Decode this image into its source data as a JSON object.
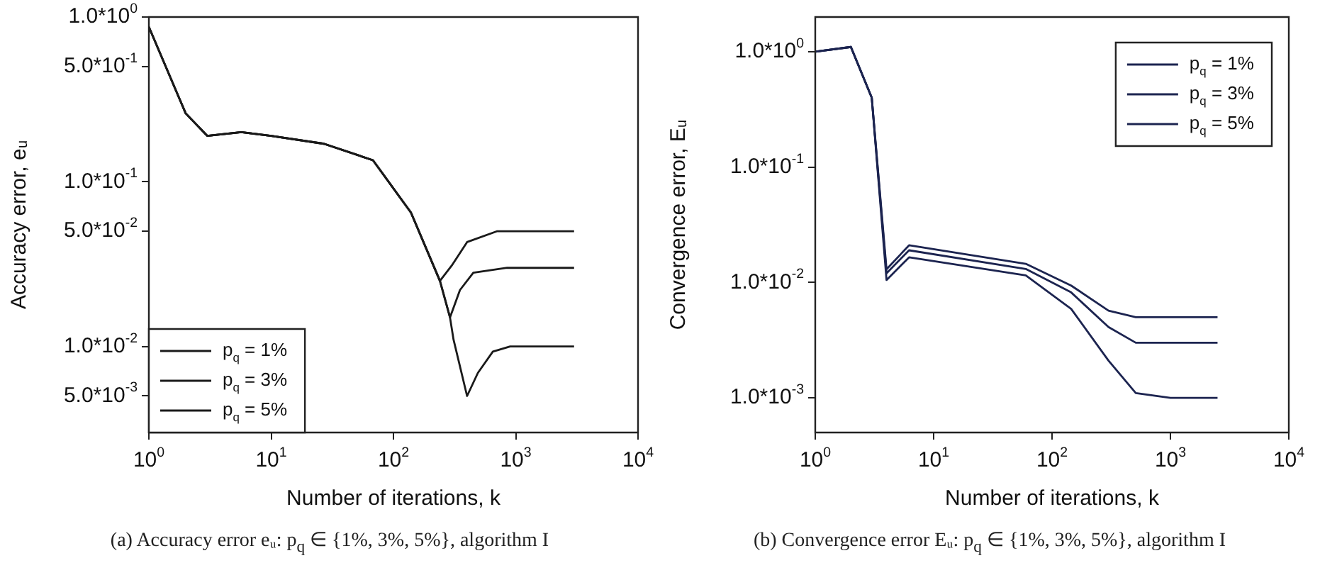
{
  "chart_data": [
    {
      "type": "line",
      "xlabel": "Number of iterations, k",
      "ylabel": "Accuracy error, eᵤ",
      "log": "xy",
      "grid": false,
      "marker": "none",
      "legend": "bottom left",
      "xlim": [
        1,
        10000
      ],
      "xticks": [
        {
          "value": 1,
          "label": "10$^{0}$"
        },
        {
          "value": 10,
          "label": "10$^{1}$"
        },
        {
          "value": 100,
          "label": "10$^{2}$"
        },
        {
          "value": 1000,
          "label": "10$^{3}$"
        },
        {
          "value": 10000,
          "label": "10$^{4}$"
        }
      ],
      "ylim": [
        0.003,
        1
      ],
      "yticks": [
        {
          "value": 1,
          "label": "1.0*10$^{0}$"
        },
        {
          "value": 0.5,
          "label": "5.0*10$^{-1}$"
        },
        {
          "value": 0.1,
          "label": "1.0*10$^{-1}$"
        },
        {
          "value": 0.05,
          "label": "5.0*10$^{-2}$"
        },
        {
          "value": 0.01,
          "label": "1.0*10$^{-2}$"
        },
        {
          "value": 0.005,
          "label": "5.0*10$^{-3}$"
        }
      ],
      "series": [
        {
          "name": "p$_{q}$ = 1%",
          "color": "#1a1a1a",
          "x": [
            1,
            2,
            3,
            5.7,
            10,
            27,
            68,
            139,
            240,
            290,
            310,
            400,
            490,
            650,
            900,
            3000
          ],
          "values": [
            0.87,
            0.26,
            0.19,
            0.2,
            0.19,
            0.17,
            0.135,
            0.065,
            0.025,
            0.015,
            0.011,
            0.005,
            0.0069,
            0.0093,
            0.01,
            0.01
          ]
        },
        {
          "name": "p$_{q}$ = 3%",
          "color": "#1a1a1a",
          "x": [
            1,
            2,
            3,
            5.7,
            10,
            27,
            68,
            139,
            240,
            290,
            350,
            450,
            850,
            3000
          ],
          "values": [
            0.87,
            0.26,
            0.19,
            0.2,
            0.19,
            0.17,
            0.135,
            0.065,
            0.025,
            0.015,
            0.022,
            0.028,
            0.03,
            0.03
          ]
        },
        {
          "name": "p$_{q}$ = 5%",
          "color": "#1a1a1a",
          "x": [
            1,
            2,
            3,
            5.7,
            10,
            27,
            68,
            139,
            240,
            300,
            400,
            700,
            3000
          ],
          "values": [
            0.87,
            0.26,
            0.19,
            0.2,
            0.19,
            0.17,
            0.135,
            0.065,
            0.025,
            0.031,
            0.043,
            0.05,
            0.05
          ]
        }
      ],
      "annotations": [
        "(a) Accuracy error eᵤ: p$_{q}$ ∈ {1%, 3%, 5%}, algorithm I"
      ]
    },
    {
      "type": "line",
      "xlabel": "Number of iterations, k",
      "ylabel": "Convergence error, Eᵤ",
      "log": "xy",
      "grid": false,
      "marker": "none",
      "legend": "top right",
      "xlim": [
        1,
        10000
      ],
      "xticks": [
        {
          "value": 1,
          "label": "10$^{0}$"
        },
        {
          "value": 10,
          "label": "10$^{1}$"
        },
        {
          "value": 100,
          "label": "10$^{2}$"
        },
        {
          "value": 1000,
          "label": "10$^{3}$"
        },
        {
          "value": 10000,
          "label": "10$^{4}$"
        }
      ],
      "ylim": [
        0.0005,
        2
      ],
      "yticks": [
        {
          "value": 1,
          "label": "1.0*10$^{0}$"
        },
        {
          "value": 0.1,
          "label": "1.0*10$^{-1}$"
        },
        {
          "value": 0.01,
          "label": "1.0*10$^{-2}$"
        },
        {
          "value": 0.001,
          "label": "1.0*10$^{-3}$"
        }
      ],
      "series": [
        {
          "name": "p$_{q}$ = 1%",
          "color": "#1c2450",
          "x": [
            1,
            2,
            3,
            4,
            6.2,
            60,
            145,
            300,
            510,
            1000,
            2500
          ],
          "values": [
            1.0,
            1.1,
            0.4,
            0.0105,
            0.0165,
            0.0115,
            0.0059,
            0.0021,
            0.0011,
            0.001,
            0.001
          ]
        },
        {
          "name": "p$_{q}$ = 3%",
          "color": "#1c2450",
          "x": [
            1,
            2,
            3,
            4,
            6.2,
            60,
            145,
            300,
            510,
            1000,
            2500
          ],
          "values": [
            1.0,
            1.1,
            0.4,
            0.012,
            0.019,
            0.0131,
            0.0082,
            0.0041,
            0.003,
            0.003,
            0.003
          ]
        },
        {
          "name": "p$_{q}$ = 5%",
          "color": "#1c2450",
          "x": [
            1,
            2,
            3,
            4,
            6.2,
            60,
            145,
            300,
            510,
            1000,
            2500
          ],
          "values": [
            1.0,
            1.1,
            0.4,
            0.013,
            0.021,
            0.0145,
            0.0094,
            0.0057,
            0.005,
            0.005,
            0.005
          ]
        }
      ],
      "annotations": [
        "(b) Convergence error Eᵤ: p$_{q}$ ∈ {1%, 3%, 5%}, algorithm I"
      ]
    }
  ]
}
